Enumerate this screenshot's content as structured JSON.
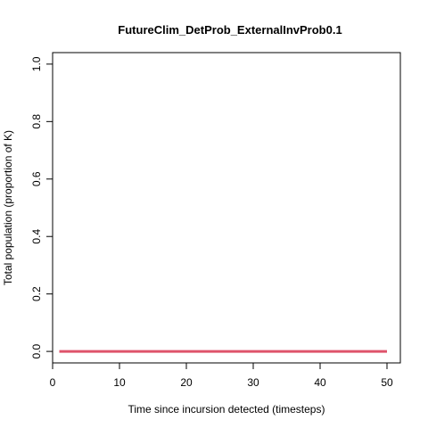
{
  "chart_data": {
    "type": "line",
    "title": "FutureClim_DetProb_ExternalInvProb0.1",
    "xlabel": "Time since incursion detected (timesteps)",
    "ylabel": "Total population (proportion of K)",
    "xlim": [
      0,
      52
    ],
    "ylim": [
      -0.04,
      1.04
    ],
    "x_ticks": [
      0,
      10,
      20,
      30,
      40,
      50
    ],
    "y_ticks": [
      0.0,
      0.2,
      0.4,
      0.6,
      0.8,
      1.0
    ],
    "x_tick_labels": [
      "0",
      "10",
      "20",
      "30",
      "40",
      "50"
    ],
    "y_tick_labels": [
      "0.0",
      "0.2",
      "0.4",
      "0.6",
      "0.8",
      "1.0"
    ],
    "grid": false,
    "series": [
      {
        "color": "#df536b",
        "x": [
          1,
          50
        ],
        "y": [
          0.0,
          0.0
        ]
      }
    ]
  }
}
